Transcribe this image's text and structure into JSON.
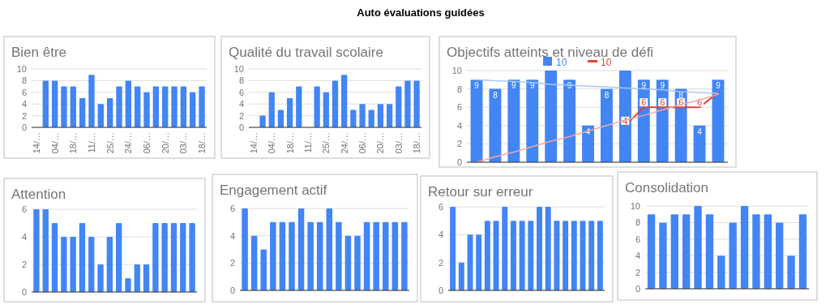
{
  "chart_data": [
    {
      "type": "other",
      "title": "Auto évaluations guidées"
    },
    {
      "type": "bar",
      "title": "Bien être",
      "categories": [
        "14/…",
        null,
        "04/…",
        null,
        "18/…",
        null,
        "11/…",
        null,
        "25/…",
        null,
        "24/…",
        null,
        "06/…",
        null,
        "20/…",
        null,
        "03/…",
        null,
        "18/…"
      ],
      "values": [
        null,
        8,
        8,
        7,
        7,
        5,
        9,
        4,
        5,
        7,
        8,
        7,
        6,
        7,
        7,
        7,
        7,
        6,
        7
      ],
      "color": "#4285f4",
      "ylim": [
        0,
        10
      ],
      "yticks": [
        0,
        2,
        4,
        6,
        8,
        10
      ],
      "grid": "y"
    },
    {
      "type": "bar",
      "title": "Qualité du travail scolaire",
      "categories": [
        "14/…",
        null,
        "04/…",
        null,
        "18/…",
        null,
        "11/…",
        null,
        "25/…",
        null,
        "24/…",
        null,
        "06/…",
        null,
        "20/…",
        null,
        "03/…",
        null,
        "18/…"
      ],
      "values": [
        null,
        2,
        6,
        3,
        5,
        7,
        null,
        7,
        6,
        8,
        9,
        3,
        4,
        3,
        4,
        4,
        7,
        8,
        8
      ],
      "color": "#4285f4",
      "ylim": [
        0,
        10
      ],
      "yticks": [
        0,
        2,
        4,
        6,
        8,
        10
      ],
      "grid": "y"
    },
    {
      "type": "bar",
      "title": "Objectifs atteints et niveau de défi",
      "categories": [
        null,
        null,
        null,
        null,
        null,
        null,
        null,
        null,
        null,
        null,
        null,
        null,
        null,
        null
      ],
      "ylim": [
        0,
        10
      ],
      "yticks": [
        0,
        2,
        4,
        6,
        8,
        10
      ],
      "grid": "y",
      "legend": "top",
      "series": [
        {
          "name": "10",
          "type": "bar",
          "color": "#4285f4",
          "values": [
            9,
            8,
            9,
            9,
            10,
            9,
            4,
            8,
            10,
            9,
            9,
            8,
            4,
            9
          ],
          "value_labels": [
            "9",
            "8",
            "9",
            "9",
            null,
            "9",
            "4",
            "8",
            null,
            "9",
            "9",
            "8",
            "4",
            "9"
          ]
        },
        {
          "name": "10",
          "type": "line",
          "color": "#db4437",
          "values": [
            null,
            null,
            null,
            null,
            null,
            null,
            null,
            null,
            4,
            6,
            6,
            6,
            6,
            7.6
          ],
          "value_labels": [
            null,
            null,
            null,
            null,
            null,
            null,
            null,
            null,
            "4",
            "6",
            "6",
            "6",
            "6",
            null
          ]
        },
        {
          "type": "line",
          "color": "#a8c7fa",
          "values": [
            9.0,
            8.9,
            8.8,
            8.7,
            8.5,
            8.4,
            8.3,
            8.2,
            8.1,
            8.0,
            7.9,
            7.7,
            7.6,
            7.5
          ]
        },
        {
          "type": "line",
          "color": "#f4a9a0",
          "values": [
            0,
            0.6,
            1.1,
            1.7,
            2.3,
            2.8,
            3.4,
            4.0,
            4.6,
            5.1,
            5.7,
            6.3,
            6.8,
            7.4
          ]
        }
      ]
    },
    {
      "type": "bar",
      "title": "Attention",
      "categories": [
        null,
        null,
        null,
        null,
        null,
        null,
        null,
        null,
        null,
        null,
        null,
        null,
        null,
        null,
        null,
        null,
        null,
        null
      ],
      "values": [
        6,
        6,
        5,
        4,
        4,
        5,
        4,
        2,
        4,
        5,
        1,
        2,
        2,
        5,
        5,
        5,
        5,
        5
      ],
      "color": "#4285f4",
      "ylim": [
        0,
        6
      ],
      "yticks": [
        0,
        2,
        4,
        6
      ],
      "grid": "y"
    },
    {
      "type": "bar",
      "title": "Engagement actif",
      "categories": [
        null,
        null,
        null,
        null,
        null,
        null,
        null,
        null,
        null,
        null,
        null,
        null,
        null,
        null,
        null,
        null,
        null,
        null
      ],
      "values": [
        6,
        4,
        3,
        5,
        5,
        5,
        6,
        5,
        5,
        6,
        5,
        4,
        4,
        5,
        5,
        5,
        5,
        5
      ],
      "color": "#4285f4",
      "ylim": [
        0,
        6
      ],
      "yticks": [
        0,
        2,
        4,
        6
      ],
      "grid": "y"
    },
    {
      "type": "bar",
      "title": "Retour sur erreur",
      "categories": [
        null,
        null,
        null,
        null,
        null,
        null,
        null,
        null,
        null,
        null,
        null,
        null,
        null,
        null,
        null,
        null,
        null,
        null
      ],
      "values": [
        6,
        2,
        4,
        4,
        5,
        5,
        6,
        5,
        5,
        5,
        6,
        6,
        5,
        5,
        5,
        5,
        5,
        5
      ],
      "color": "#4285f4",
      "ylim": [
        0,
        6
      ],
      "yticks": [
        0,
        2,
        4,
        6
      ],
      "grid": "y"
    },
    {
      "type": "bar",
      "title": "Consolidation",
      "categories": [
        null,
        null,
        null,
        null,
        null,
        null,
        null,
        null,
        null,
        null,
        null,
        null,
        null,
        null
      ],
      "values": [
        9,
        8,
        9,
        9,
        10,
        9,
        4,
        8,
        10,
        9,
        9,
        8,
        4,
        9
      ],
      "color": "#4285f4",
      "ylim": [
        0,
        10
      ],
      "yticks": [
        0,
        2,
        4,
        6,
        8,
        10
      ],
      "grid": "y"
    }
  ]
}
